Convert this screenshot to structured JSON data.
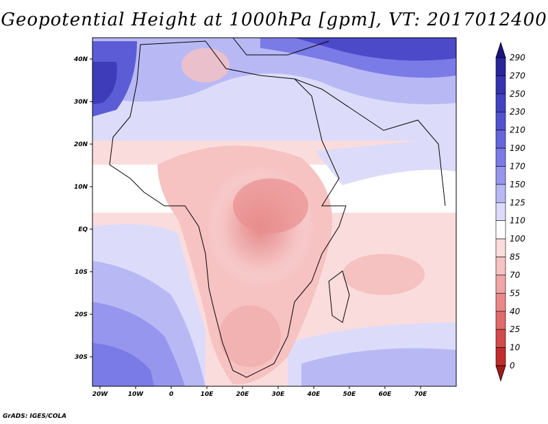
{
  "title": "Geopotential Height at 1000hPa [gpm], VT: 2017012400",
  "footer": "GrADS: IGES/COLA",
  "map": {
    "projection": "lat-lon",
    "lon_range": [
      -23,
      80
    ],
    "lat_range": [
      -37,
      46
    ],
    "x_ticks": [
      "20W",
      "10W",
      "0",
      "10E",
      "20E",
      "30E",
      "40E",
      "50E",
      "60E",
      "70E"
    ],
    "y_ticks": [
      "40N",
      "30N",
      "20N",
      "10N",
      "EQ",
      "10S",
      "20S",
      "30S"
    ]
  },
  "colorbar": {
    "labels": [
      "290",
      "270",
      "250",
      "230",
      "210",
      "190",
      "170",
      "150",
      "125",
      "110",
      "100",
      "85",
      "70",
      "55",
      "40",
      "25",
      "10",
      "0"
    ],
    "colors": [
      "#1c1480",
      "#2a2599",
      "#3633b0",
      "#4242c2",
      "#5252d0",
      "#6566dc",
      "#7a7be6",
      "#9696ee",
      "#b8b9f4",
      "#dcdcfa",
      "#ffffff",
      "#fbdcdc",
      "#f6c2c2",
      "#f0a6a6",
      "#ea8888",
      "#e06a6a",
      "#d44a4a",
      "#c22c2c",
      "#a01a1a"
    ]
  }
}
